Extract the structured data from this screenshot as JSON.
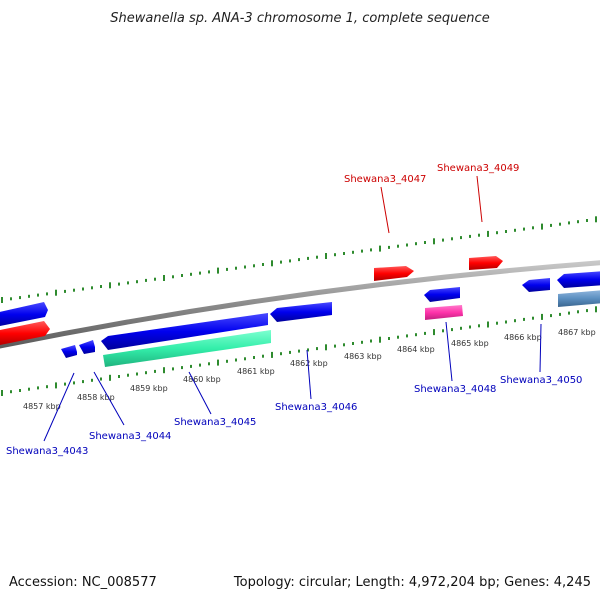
{
  "title": "Shewanella sp. ANA-3 chromosome 1, complete sequence",
  "footer": {
    "accession": "Accession: NC_008577",
    "topology": "Topology: circular; Length: 4,972,204 bp; Genes: 4,245"
  },
  "colors": {
    "backbone": "#8a8a8a",
    "tick": "#2e8b2e",
    "forward_gene": "#ff0000",
    "reverse_gene": "#0000ee",
    "teal_gene": "#33eeaa",
    "pink_gene": "#ff33aa",
    "steel_gene": "#5b8fc0",
    "label_forward": "#cc0000",
    "label_reverse": "#0000bb"
  },
  "scale": {
    "tick_labels": [
      "4857 kbp",
      "4858 kbp",
      "4859 kbp",
      "4860 kbp",
      "4861 kbp",
      "4862 kbp",
      "4863 kbp",
      "4864 kbp",
      "4865 kbp",
      "4866 kbp",
      "4867 kbp"
    ]
  },
  "genes": {
    "forward_labels": [
      "Shewana3_4047",
      "Shewana3_4049"
    ],
    "reverse_labels": [
      "Shewana3_4043",
      "Shewana3_4044",
      "Shewana3_4045",
      "Shewana3_4046",
      "Shewana3_4048",
      "Shewana3_4050"
    ]
  }
}
